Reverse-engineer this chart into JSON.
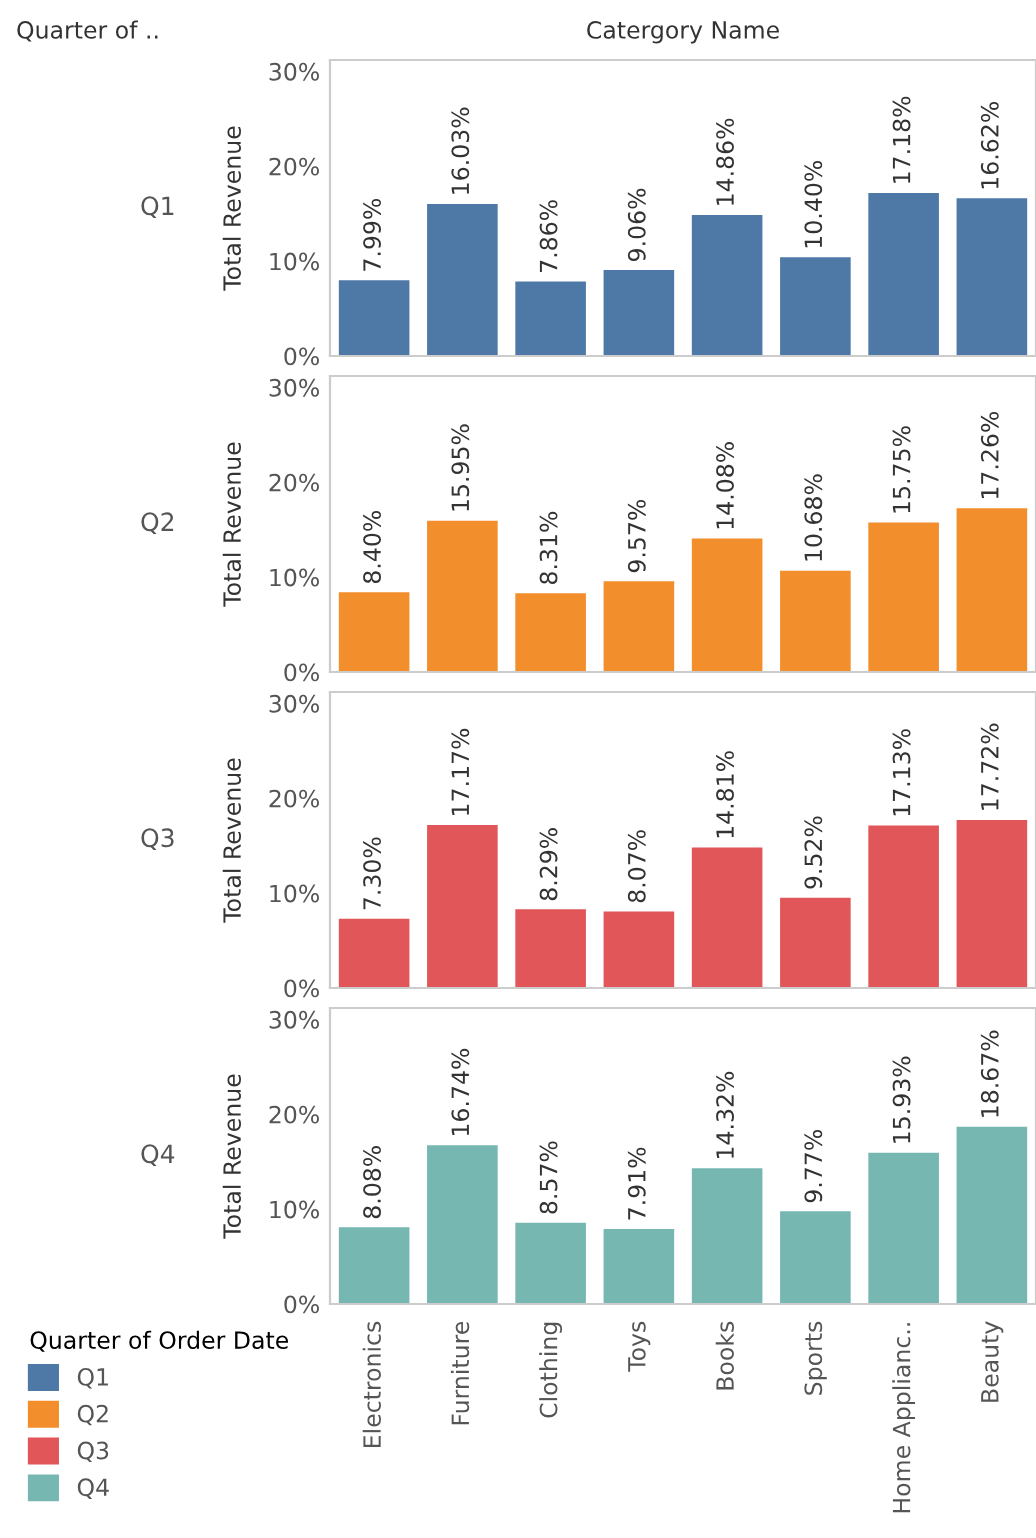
{
  "chart_data": [
    {
      "type": "bar",
      "title": "Q1",
      "ylabel": "Total Revenue",
      "annotations": [
        "Quarter of ..",
        "Catergory Name"
      ],
      "categories": [
        null,
        null,
        null,
        null,
        null,
        null,
        null,
        null
      ],
      "series": [
        {
          "name": "Q1",
          "color": "#4e79a7",
          "values": [
            7.99,
            16.03,
            7.86,
            9.06,
            14.86,
            10.4,
            17.18,
            16.62
          ],
          "value_labels": [
            "7.99%",
            "16.03%",
            "7.86%",
            "9.06%",
            "14.86%",
            "10.40%",
            "17.18%",
            "16.62%"
          ]
        }
      ],
      "ylim": [
        0,
        31.2
      ],
      "yticks": [
        {
          "value": 0,
          "label": "0%"
        },
        {
          "value": 10,
          "label": "10%"
        },
        {
          "value": 20,
          "label": "20%"
        },
        {
          "value": 30,
          "label": "30%"
        }
      ],
      "tick_labels": "y",
      "legend": "bottom left",
      "grid": false
    },
    {
      "type": "bar",
      "title": "Q2",
      "ylabel": "Total Revenue",
      "categories": [
        null,
        null,
        null,
        null,
        null,
        null,
        null,
        null
      ],
      "series": [
        {
          "name": "Q2",
          "color": "#f28e2b",
          "values": [
            8.4,
            15.95,
            8.31,
            9.57,
            14.08,
            10.68,
            15.75,
            17.26
          ],
          "value_labels": [
            "8.40%",
            "15.95%",
            "8.31%",
            "9.57%",
            "14.08%",
            "10.68%",
            "15.75%",
            "17.26%"
          ]
        }
      ],
      "ylim": [
        0,
        31.2
      ],
      "yticks": [
        {
          "value": 0,
          "label": "0%"
        },
        {
          "value": 10,
          "label": "10%"
        },
        {
          "value": 20,
          "label": "20%"
        },
        {
          "value": 30,
          "label": "30%"
        }
      ],
      "tick_labels": "y",
      "legend": "bottom left",
      "grid": false
    },
    {
      "type": "bar",
      "title": "Q3",
      "ylabel": "Total Revenue",
      "categories": [
        null,
        null,
        null,
        null,
        null,
        null,
        null,
        null
      ],
      "series": [
        {
          "name": "Q3",
          "color": "#e15759",
          "values": [
            7.3,
            17.17,
            8.29,
            8.07,
            14.81,
            9.52,
            17.13,
            17.72
          ],
          "value_labels": [
            "7.30%",
            "17.17%",
            "8.29%",
            "8.07%",
            "14.81%",
            "9.52%",
            "17.13%",
            "17.72%"
          ]
        }
      ],
      "ylim": [
        0,
        31.2
      ],
      "yticks": [
        {
          "value": 0,
          "label": "0%"
        },
        {
          "value": 10,
          "label": "10%"
        },
        {
          "value": 20,
          "label": "20%"
        },
        {
          "value": 30,
          "label": "30%"
        }
      ],
      "tick_labels": "y",
      "legend": "bottom left",
      "grid": false
    },
    {
      "type": "bar",
      "title": "Q4",
      "ylabel": "Total Revenue",
      "legend_title": "Quarter of Order Date",
      "categories": [
        "Electronics",
        "Furniture",
        "Clothing",
        "Toys",
        "Books",
        "Sports",
        "Home Applianc..",
        "Beauty"
      ],
      "series": [
        {
          "name": "Q4",
          "color": "#76b7b2",
          "values": [
            8.08,
            16.74,
            8.57,
            7.91,
            14.32,
            9.77,
            15.93,
            18.67
          ],
          "value_labels": [
            "8.08%",
            "16.74%",
            "8.57%",
            "7.91%",
            "14.32%",
            "9.77%",
            "15.93%",
            "18.67%"
          ]
        }
      ],
      "ylim": [
        0,
        31.2
      ],
      "yticks": [
        {
          "value": 0,
          "label": "0%"
        },
        {
          "value": 10,
          "label": "10%"
        },
        {
          "value": 20,
          "label": "20%"
        },
        {
          "value": 30,
          "label": "30%"
        }
      ],
      "legend": "bottom left",
      "grid": false
    }
  ]
}
